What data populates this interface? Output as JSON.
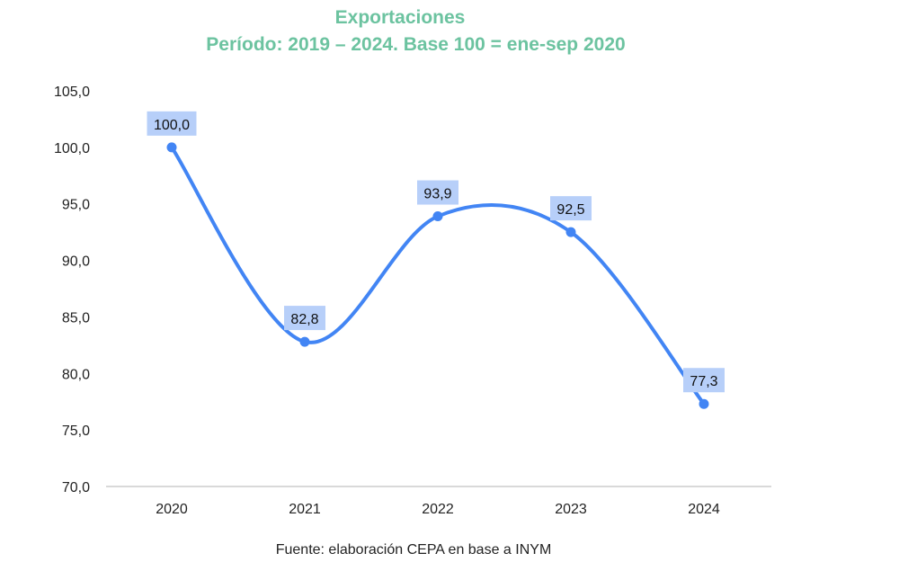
{
  "chart_data": {
    "type": "line",
    "title": "Exportaciones",
    "subtitle": "Período: 2019 – 2024. Base 100 = ene-sep 2020",
    "categories": [
      "2020",
      "2021",
      "2022",
      "2023",
      "2024"
    ],
    "series": [
      {
        "name": "Exportaciones",
        "values": [
          100.0,
          82.8,
          93.9,
          92.5,
          77.3
        ],
        "color": "#4285f4"
      }
    ],
    "data_labels": [
      "100,0",
      "82,8",
      "93,9",
      "92,5",
      "77,3"
    ],
    "yticks": [
      70,
      75,
      80,
      85,
      90,
      95,
      100,
      105
    ],
    "ytick_labels": [
      "70,0",
      "75,0",
      "80,0",
      "85,0",
      "90,0",
      "95,0",
      "100,0",
      "105,0"
    ],
    "ylim": [
      70,
      105
    ],
    "xlabel": "",
    "ylabel": "",
    "grid": false,
    "smooth": true,
    "label_bg_color": "#b7cff9",
    "title_color": "#6cc3a0",
    "source": "Fuente: elaboración CEPA en base a INYM"
  }
}
